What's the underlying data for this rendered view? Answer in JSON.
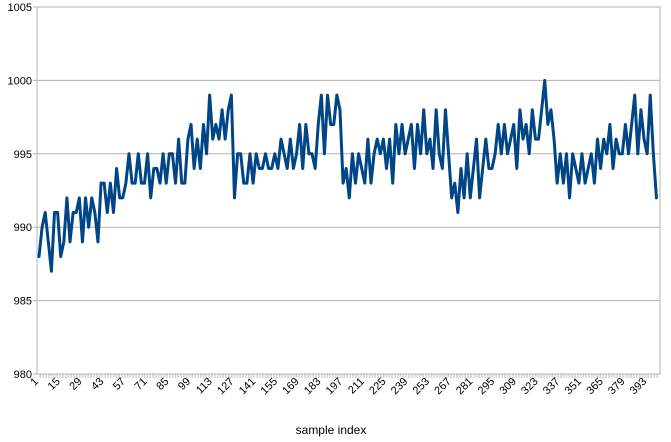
{
  "chart_data": {
    "type": "line",
    "title": "",
    "xlabel": "sample index",
    "ylabel": "",
    "ylim": [
      980,
      1005
    ],
    "yticks": [
      980,
      985,
      990,
      995,
      1000,
      1005
    ],
    "xlim": [
      1,
      400
    ],
    "xtick_labels": [
      "1",
      "15",
      "29",
      "43",
      "57",
      "71",
      "85",
      "99",
      "113",
      "127",
      "141",
      "155",
      "169",
      "183",
      "197",
      "211",
      "225",
      "239",
      "253",
      "267",
      "281",
      "295",
      "309",
      "323",
      "337",
      "351",
      "365",
      "379",
      "393"
    ],
    "grid": true,
    "legend": "none",
    "series": [
      {
        "color": "#004586",
        "x": [
          1,
          3,
          5,
          7,
          9,
          11,
          13,
          15,
          17,
          19,
          21,
          23,
          25,
          27,
          29,
          31,
          33,
          35,
          37,
          39,
          41,
          43,
          45,
          47,
          49,
          51,
          53,
          55,
          57,
          59,
          61,
          63,
          65,
          67,
          69,
          71,
          73,
          75,
          77,
          79,
          81,
          83,
          85,
          87,
          89,
          91,
          93,
          95,
          97,
          99,
          101,
          103,
          105,
          107,
          109,
          111,
          113,
          115,
          117,
          119,
          121,
          123,
          125,
          127,
          129,
          131,
          133,
          135,
          137,
          139,
          141,
          143,
          145,
          147,
          149,
          151,
          153,
          155,
          157,
          159,
          161,
          163,
          165,
          167,
          169,
          171,
          173,
          175,
          177,
          179,
          181,
          183,
          185,
          187,
          189,
          191,
          193,
          195,
          197,
          199,
          201,
          203,
          205,
          207,
          209,
          211,
          213,
          215,
          217,
          219,
          221,
          223,
          225,
          227,
          229,
          231,
          233,
          235,
          237,
          239,
          241,
          243,
          245,
          247,
          249,
          251,
          253,
          255,
          257,
          259,
          261,
          263,
          265,
          267,
          269,
          271,
          273,
          275,
          277,
          279,
          281,
          283,
          285,
          287,
          289,
          291,
          293,
          295,
          297,
          299,
          301,
          303,
          305,
          307,
          309,
          311,
          313,
          315,
          317,
          319,
          321,
          323,
          325,
          327,
          329,
          331,
          333,
          335,
          337,
          339,
          341,
          343,
          345,
          347,
          349,
          351,
          353,
          355,
          357,
          359,
          361,
          363,
          365,
          367,
          369,
          371,
          373,
          375,
          377,
          379,
          381,
          383,
          385,
          387,
          389,
          391,
          393,
          395,
          397,
          399
        ],
        "y": [
          988,
          990,
          991,
          989,
          987,
          991,
          991,
          988,
          989,
          992,
          989,
          991,
          991,
          992,
          989,
          992,
          990,
          992,
          991,
          989,
          993,
          993,
          991,
          993,
          991,
          994,
          992,
          992,
          993,
          995,
          993,
          993,
          995,
          993,
          993,
          995,
          992,
          994,
          994,
          993,
          995,
          993,
          995,
          995,
          993,
          996,
          993,
          993,
          996,
          997,
          994,
          996,
          994,
          997,
          995,
          999,
          996,
          997,
          996,
          998,
          996,
          998,
          999,
          992,
          995,
          995,
          993,
          993,
          995,
          993,
          995,
          994,
          994,
          995,
          994,
          994,
          995,
          994,
          996,
          995,
          994,
          996,
          994,
          995,
          997,
          994,
          997,
          995,
          995,
          994,
          997,
          999,
          995,
          999,
          997,
          997,
          999,
          998,
          993,
          994,
          992,
          995,
          993,
          995,
          994,
          993,
          996,
          993,
          995,
          996,
          995,
          996,
          994,
          996,
          993,
          997,
          995,
          997,
          995,
          996,
          997,
          994,
          997,
          995,
          998,
          995,
          996,
          994,
          998,
          995,
          994,
          998,
          995,
          992,
          993,
          991,
          994,
          992,
          995,
          992,
          994,
          996,
          992,
          994,
          996,
          994,
          994,
          995,
          997,
          995,
          997,
          995,
          996,
          997,
          994,
          998,
          996,
          997,
          995,
          998,
          996,
          996,
          998,
          1000,
          997,
          998,
          996,
          993,
          995,
          993,
          995,
          992,
          995,
          994,
          993,
          995,
          993,
          994,
          995,
          993,
          996,
          994,
          996,
          995,
          997,
          994,
          996,
          995,
          995,
          997,
          995,
          997,
          999,
          995,
          998,
          996,
          995,
          999,
          995,
          992
        ]
      }
    ]
  }
}
